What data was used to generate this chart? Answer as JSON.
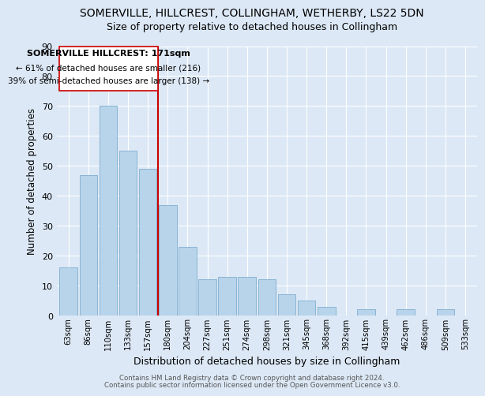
{
  "title": "SOMERVILLE, HILLCREST, COLLINGHAM, WETHERBY, LS22 5DN",
  "subtitle": "Size of property relative to detached houses in Collingham",
  "xlabel": "Distribution of detached houses by size in Collingham",
  "ylabel": "Number of detached properties",
  "bar_labels": [
    "63sqm",
    "86sqm",
    "110sqm",
    "133sqm",
    "157sqm",
    "180sqm",
    "204sqm",
    "227sqm",
    "251sqm",
    "274sqm",
    "298sqm",
    "321sqm",
    "345sqm",
    "368sqm",
    "392sqm",
    "415sqm",
    "439sqm",
    "462sqm",
    "486sqm",
    "509sqm",
    "533sqm"
  ],
  "bar_values": [
    16,
    47,
    70,
    55,
    49,
    37,
    23,
    12,
    13,
    13,
    12,
    7,
    5,
    3,
    0,
    2,
    0,
    2,
    0,
    2,
    0
  ],
  "bar_color": "#b8d4ea",
  "bar_edge_color": "#8ab4d4",
  "vline_color": "#cc0000",
  "ylim": [
    0,
    90
  ],
  "yticks": [
    0,
    10,
    20,
    30,
    40,
    50,
    60,
    70,
    80,
    90
  ],
  "annotation_title": "SOMERVILLE HILLCREST: 171sqm",
  "annotation_line1": "← 61% of detached houses are smaller (216)",
  "annotation_line2": "39% of semi-detached houses are larger (138) →",
  "footer1": "Contains HM Land Registry data © Crown copyright and database right 2024.",
  "footer2": "Contains public sector information licensed under the Open Government Licence v3.0.",
  "background_color": "#dce8f5",
  "title_fontsize": 10,
  "subtitle_fontsize": 9
}
